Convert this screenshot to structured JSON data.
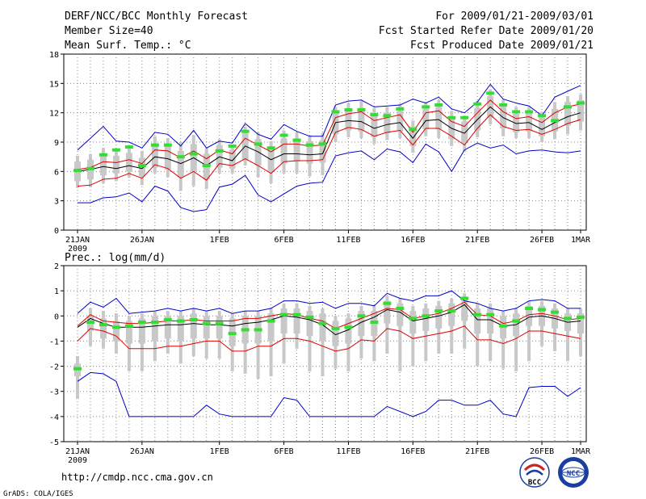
{
  "header": {
    "title": "DERF/NCC/BCC Monthly Forecast",
    "member_size": "Member Size=40",
    "variable": "Mean Surf. Temp.: °C",
    "period": "For 2009/01/21-2009/03/01",
    "fcst_started": "Fcst Started Refer Date 2009/01/20",
    "fcst_produced": "Fcst Produced Date 2009/01/21"
  },
  "footer": {
    "url": "http://cmdp.ncc.cma.gov.cn",
    "grads": "GrADS: COLA/IGES",
    "logo_bcc": "BCC",
    "logo_ncc": "NCC"
  },
  "colors": {
    "minmax": "#0000cc",
    "spread": "#dd0000",
    "mean": "#000000",
    "box": "#c8c8c8",
    "obs": "#33dd33",
    "grid": "#888888"
  },
  "chart_data": [
    {
      "type": "line",
      "id": "temperature",
      "title": "Mean Surf. Temp.: °C",
      "ylim": [
        0,
        18
      ],
      "yticks": [
        0,
        3,
        6,
        9,
        12,
        15,
        18
      ],
      "xticks": [
        {
          "day": 1,
          "label": "21JAN",
          "sub": "2009"
        },
        {
          "day": 6,
          "label": "26JAN"
        },
        {
          "day": 12,
          "label": "1FEB"
        },
        {
          "day": 17,
          "label": "6FEB"
        },
        {
          "day": 22,
          "label": "11FEB"
        },
        {
          "day": 27,
          "label": "16FEB"
        },
        {
          "day": 32,
          "label": "21FEB"
        },
        {
          "day": 37,
          "label": "26FEB"
        },
        {
          "day": 40,
          "label": "1MAR"
        }
      ],
      "days": [
        1,
        2,
        3,
        4,
        5,
        6,
        7,
        8,
        9,
        10,
        11,
        12,
        13,
        14,
        15,
        16,
        17,
        18,
        19,
        20,
        21,
        22,
        23,
        24,
        25,
        26,
        27,
        28,
        29,
        30,
        31,
        32,
        33,
        34,
        35,
        36,
        37,
        38,
        39,
        40
      ],
      "series": [
        {
          "name": "max",
          "values": [
            8.2,
            9.4,
            10.6,
            9.1,
            9.0,
            8.4,
            10.0,
            9.8,
            8.6,
            10.2,
            8.4,
            9.1,
            8.9,
            10.9,
            9.8,
            9.3,
            10.8,
            10.1,
            9.6,
            9.6,
            12.8,
            13.2,
            13.3,
            12.6,
            12.7,
            12.8,
            13.4,
            13.0,
            13.6,
            12.4,
            12.0,
            13.1,
            14.9,
            13.4,
            13.0,
            12.7,
            11.7,
            13.6,
            14.2,
            14.8
          ]
        },
        {
          "name": "upper",
          "values": [
            6.2,
            6.4,
            7.0,
            6.9,
            7.2,
            6.8,
            8.2,
            8.1,
            7.4,
            8.1,
            7.3,
            8.2,
            7.8,
            9.4,
            8.7,
            8.0,
            8.8,
            8.8,
            8.6,
            8.7,
            11.5,
            11.9,
            12.1,
            11.2,
            11.5,
            11.8,
            10.0,
            12.0,
            12.2,
            11.1,
            10.6,
            12.0,
            13.3,
            12.1,
            11.4,
            11.6,
            11.0,
            12.0,
            12.6,
            12.9
          ]
        },
        {
          "name": "mean",
          "values": [
            6.0,
            6.2,
            6.5,
            6.3,
            6.6,
            6.3,
            7.5,
            7.3,
            6.8,
            7.4,
            6.6,
            7.5,
            7.1,
            8.6,
            8.0,
            7.2,
            7.8,
            7.8,
            7.7,
            7.8,
            11.0,
            11.2,
            11.1,
            10.4,
            10.8,
            11.0,
            9.4,
            11.2,
            11.3,
            10.4,
            9.9,
            11.3,
            12.6,
            11.5,
            10.9,
            11.0,
            10.3,
            11.0,
            11.6,
            12.0
          ]
        },
        {
          "name": "lower",
          "values": [
            4.5,
            4.6,
            5.2,
            5.3,
            5.8,
            5.3,
            6.7,
            6.3,
            5.3,
            6.0,
            5.1,
            6.8,
            6.6,
            7.3,
            6.6,
            5.8,
            7.0,
            7.1,
            7.1,
            7.2,
            10.0,
            10.5,
            10.3,
            9.6,
            10.0,
            10.2,
            8.7,
            10.4,
            10.4,
            9.6,
            8.7,
            10.4,
            11.8,
            10.6,
            10.2,
            10.3,
            9.8,
            10.3,
            10.9,
            11.3
          ]
        },
        {
          "name": "min",
          "values": [
            2.8,
            2.8,
            3.3,
            3.4,
            3.8,
            2.9,
            4.5,
            4.0,
            2.3,
            1.9,
            2.1,
            4.4,
            4.7,
            5.6,
            3.6,
            2.9,
            3.7,
            4.5,
            4.8,
            4.9,
            7.6,
            7.9,
            8.1,
            7.2,
            8.3,
            8.0,
            6.9,
            8.8,
            8.0,
            6.0,
            8.2,
            8.9,
            8.4,
            8.7,
            7.8,
            8.1,
            8.2,
            8.0,
            7.9,
            8.1
          ]
        },
        {
          "name": "obs",
          "values": [
            6.1,
            6.3,
            7.7,
            8.2,
            8.5,
            6.6,
            8.7,
            8.7,
            7.5,
            7.8,
            6.6,
            8.1,
            8.6,
            10.1,
            8.8,
            8.4,
            9.7,
            9.2,
            8.7,
            8.8,
            12.1,
            12.3,
            12.3,
            11.8,
            11.7,
            12.4,
            10.3,
            12.6,
            12.8,
            11.5,
            11.5,
            12.9,
            14.0,
            12.8,
            12.1,
            12.1,
            11.7,
            11.2,
            12.6,
            13.0
          ]
        }
      ],
      "boxes": {
        "q_low": [
          5.0,
          5.2,
          5.6,
          5.8,
          6.0,
          5.5,
          6.4,
          6.2,
          5.4,
          6.0,
          5.2,
          6.4,
          6.3,
          7.2,
          6.6,
          6.0,
          6.8,
          7.0,
          6.8,
          6.9,
          9.8,
          10.2,
          10.1,
          9.5,
          9.9,
          10.1,
          8.6,
          10.3,
          10.3,
          9.3,
          8.9,
          10.2,
          11.5,
          10.4,
          10.0,
          10.1,
          9.6,
          10.1,
          10.7,
          11.1
        ],
        "q_high": [
          7.0,
          7.2,
          7.6,
          7.6,
          7.9,
          7.4,
          8.8,
          8.6,
          8.1,
          8.8,
          7.8,
          8.7,
          8.2,
          9.9,
          9.3,
          8.5,
          9.4,
          9.3,
          9.1,
          9.2,
          12.0,
          12.4,
          12.5,
          11.7,
          12.0,
          12.2,
          10.6,
          12.4,
          12.6,
          11.6,
          11.1,
          12.5,
          13.7,
          12.6,
          11.9,
          12.0,
          11.5,
          12.4,
          13.1,
          13.3
        ],
        "w_low": [
          4.3,
          4.4,
          4.8,
          5.0,
          5.4,
          4.6,
          5.8,
          5.4,
          4.0,
          4.5,
          4.2,
          5.8,
          5.8,
          6.6,
          5.4,
          4.8,
          5.8,
          5.8,
          5.5,
          5.6,
          9.0,
          9.5,
          9.4,
          8.8,
          9.2,
          9.4,
          7.9,
          9.6,
          9.4,
          8.6,
          8.0,
          9.5,
          10.8,
          9.6,
          9.4,
          9.4,
          9.0,
          9.3,
          9.8,
          10.2
        ],
        "w_high": [
          7.6,
          7.8,
          8.4,
          8.2,
          8.6,
          8.1,
          9.6,
          9.4,
          9.0,
          9.7,
          8.4,
          9.3,
          8.6,
          10.6,
          10.0,
          9.1,
          10.2,
          10.0,
          9.7,
          9.9,
          12.6,
          13.0,
          13.2,
          12.5,
          12.6,
          12.9,
          11.2,
          13.1,
          13.3,
          12.2,
          11.7,
          13.2,
          14.4,
          13.3,
          12.6,
          12.6,
          12.1,
          13.1,
          13.7,
          13.9
        ]
      }
    },
    {
      "type": "line",
      "id": "precipitation",
      "title": "Prec.: log(mm/d)",
      "ylim": [
        -5,
        2
      ],
      "yticks": [
        -5,
        -4,
        -3,
        -2,
        -1,
        0,
        1,
        2
      ],
      "xticks": [
        {
          "day": 1,
          "label": "21JAN",
          "sub": "2009"
        },
        {
          "day": 6,
          "label": "26JAN"
        },
        {
          "day": 12,
          "label": "1FEB"
        },
        {
          "day": 17,
          "label": "6FEB"
        },
        {
          "day": 22,
          "label": "11FEB"
        },
        {
          "day": 27,
          "label": "16FEB"
        },
        {
          "day": 32,
          "label": "21FEB"
        },
        {
          "day": 37,
          "label": "26FEB"
        },
        {
          "day": 40,
          "label": "1MAR"
        }
      ],
      "days": [
        1,
        2,
        3,
        4,
        5,
        6,
        7,
        8,
        9,
        10,
        11,
        12,
        13,
        14,
        15,
        16,
        17,
        18,
        19,
        20,
        21,
        22,
        23,
        24,
        25,
        26,
        27,
        28,
        29,
        30,
        31,
        32,
        33,
        34,
        35,
        36,
        37,
        38,
        39,
        40
      ],
      "series": [
        {
          "name": "max",
          "values": [
            0.1,
            0.55,
            0.35,
            0.7,
            0.1,
            0.15,
            0.2,
            0.3,
            0.2,
            0.3,
            0.2,
            0.3,
            0.1,
            0.2,
            0.2,
            0.3,
            0.6,
            0.6,
            0.5,
            0.55,
            0.3,
            0.5,
            0.5,
            0.4,
            0.9,
            0.7,
            0.6,
            0.8,
            0.8,
            1.0,
            0.6,
            0.5,
            0.3,
            0.2,
            0.3,
            0.6,
            0.65,
            0.6,
            0.3,
            0.3
          ]
        },
        {
          "name": "upper",
          "values": [
            -0.4,
            0.05,
            -0.2,
            -0.25,
            -0.3,
            -0.3,
            -0.25,
            -0.2,
            -0.2,
            -0.15,
            -0.2,
            -0.2,
            -0.2,
            -0.1,
            -0.1,
            0.0,
            0.1,
            0.05,
            -0.1,
            -0.2,
            -0.5,
            -0.3,
            -0.1,
            0.1,
            0.3,
            0.25,
            -0.1,
            0.0,
            0.1,
            0.3,
            0.55,
            0.05,
            0.0,
            -0.3,
            -0.2,
            0.05,
            0.1,
            0.0,
            -0.15,
            -0.1
          ]
        },
        {
          "name": "mean",
          "values": [
            -0.45,
            -0.1,
            -0.3,
            -0.45,
            -0.45,
            -0.45,
            -0.4,
            -0.35,
            -0.35,
            -0.3,
            -0.35,
            -0.35,
            -0.4,
            -0.3,
            -0.25,
            -0.15,
            0.0,
            -0.05,
            -0.15,
            -0.35,
            -0.75,
            -0.55,
            -0.25,
            -0.05,
            0.25,
            0.15,
            -0.2,
            -0.1,
            0.0,
            0.15,
            0.45,
            -0.15,
            -0.15,
            -0.4,
            -0.35,
            -0.05,
            0.0,
            -0.1,
            -0.25,
            -0.2
          ]
        },
        {
          "name": "lower",
          "values": [
            -1.0,
            -0.5,
            -0.6,
            -0.8,
            -1.3,
            -1.3,
            -1.3,
            -1.2,
            -1.2,
            -1.1,
            -1.0,
            -1.0,
            -1.4,
            -1.4,
            -1.2,
            -1.2,
            -0.9,
            -0.9,
            -1.0,
            -1.2,
            -1.4,
            -1.3,
            -0.95,
            -1.0,
            -0.5,
            -0.6,
            -0.9,
            -0.8,
            -0.7,
            -0.6,
            -0.4,
            -0.95,
            -0.95,
            -1.1,
            -0.9,
            -0.6,
            -0.6,
            -0.7,
            -0.8,
            -0.9
          ]
        },
        {
          "name": "min",
          "values": [
            -2.6,
            -2.25,
            -2.3,
            -2.6,
            -4.0,
            -4.0,
            -4.0,
            -4.0,
            -4.0,
            -4.0,
            -3.55,
            -3.9,
            -4.0,
            -4.0,
            -4.0,
            -4.0,
            -3.25,
            -3.35,
            -4.0,
            -4.0,
            -4.0,
            -4.0,
            -4.0,
            -4.0,
            -3.6,
            -3.8,
            -4.0,
            -3.8,
            -3.35,
            -3.35,
            -3.55,
            -3.55,
            -3.35,
            -3.9,
            -4.0,
            -2.85,
            -2.8,
            -2.8,
            -3.2,
            -2.85
          ]
        },
        {
          "name": "obs",
          "values": [
            -2.1,
            -0.25,
            -0.35,
            -0.45,
            -0.4,
            -0.25,
            -0.25,
            -0.15,
            -0.2,
            -0.15,
            -0.3,
            -0.3,
            -0.7,
            -0.55,
            -0.55,
            -0.2,
            0.05,
            0.05,
            -0.05,
            -0.3,
            -0.5,
            -0.45,
            0.0,
            -0.25,
            0.5,
            0.3,
            -0.1,
            0.0,
            0.2,
            0.2,
            0.7,
            0.05,
            0.05,
            -0.4,
            -0.2,
            0.3,
            0.25,
            0.15,
            -0.1,
            -0.05
          ]
        }
      ],
      "boxes": {
        "q_low": [
          -2.4,
          -0.6,
          -0.9,
          -1.0,
          -1.1,
          -1.1,
          -1.0,
          -0.9,
          -1.0,
          -0.9,
          -0.9,
          -0.9,
          -1.2,
          -1.1,
          -1.1,
          -1.0,
          -0.7,
          -0.7,
          -0.8,
          -1.0,
          -1.2,
          -1.1,
          -0.8,
          -0.8,
          -0.3,
          -0.4,
          -0.7,
          -0.6,
          -0.5,
          -0.4,
          -0.2,
          -0.7,
          -0.7,
          -0.9,
          -0.8,
          -0.4,
          -0.4,
          -0.5,
          -0.6,
          -0.7
        ],
        "q_high": [
          -1.9,
          0.0,
          -0.1,
          -0.2,
          -0.2,
          -0.1,
          0.0,
          0.0,
          0.0,
          0.1,
          0.0,
          0.0,
          -0.1,
          0.0,
          0.0,
          0.1,
          0.3,
          0.3,
          0.2,
          0.1,
          -0.2,
          -0.1,
          0.2,
          0.2,
          0.6,
          0.5,
          0.2,
          0.3,
          0.4,
          0.5,
          0.7,
          0.3,
          0.3,
          0.0,
          0.1,
          0.4,
          0.4,
          0.3,
          0.1,
          0.1
        ],
        "w_low": [
          -3.3,
          -1.2,
          -1.3,
          -1.5,
          -2.2,
          -2.2,
          -1.8,
          -1.5,
          -1.9,
          -1.6,
          -1.7,
          -1.7,
          -2.2,
          -2.3,
          -2.5,
          -2.4,
          -1.9,
          -1.3,
          -2.2,
          -2.4,
          -2.1,
          -2.2,
          -1.7,
          -1.8,
          -1.5,
          -2.2,
          -2.0,
          -1.8,
          -1.5,
          -1.5,
          -1.3,
          -2.0,
          -1.8,
          -2.1,
          -2.2,
          -1.8,
          -1.2,
          -1.4,
          -1.8,
          -1.6
        ],
        "w_high": [
          -1.6,
          0.3,
          0.2,
          0.1,
          0.0,
          0.1,
          0.2,
          0.2,
          0.2,
          0.3,
          0.2,
          0.2,
          0.1,
          0.2,
          0.2,
          0.3,
          0.5,
          0.5,
          0.4,
          0.3,
          0.0,
          0.1,
          0.4,
          0.4,
          0.8,
          0.7,
          0.4,
          0.5,
          0.6,
          0.7,
          0.9,
          0.5,
          0.5,
          0.2,
          0.3,
          0.6,
          0.6,
          0.5,
          0.3,
          0.3
        ]
      }
    }
  ]
}
